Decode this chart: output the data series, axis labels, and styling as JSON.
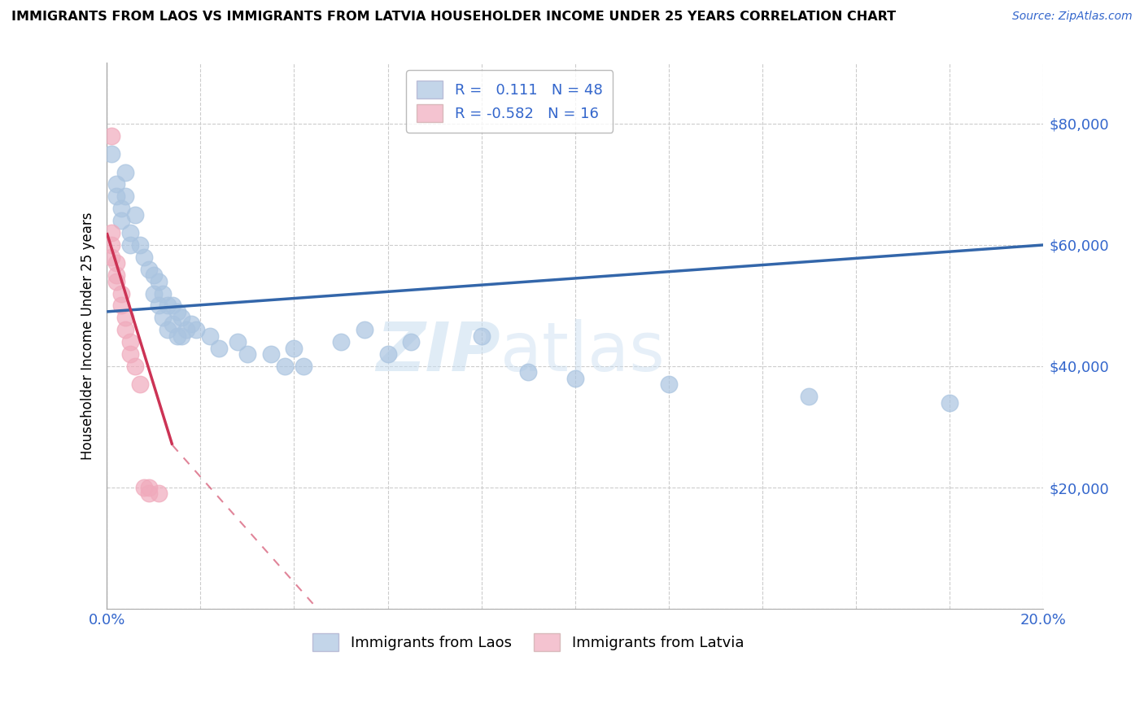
{
  "title": "IMMIGRANTS FROM LAOS VS IMMIGRANTS FROM LATVIA HOUSEHOLDER INCOME UNDER 25 YEARS CORRELATION CHART",
  "source": "Source: ZipAtlas.com",
  "ylabel": "Householder Income Under 25 years",
  "xlim": [
    0.0,
    0.2
  ],
  "ylim": [
    0,
    90000
  ],
  "yticks": [
    0,
    20000,
    40000,
    60000,
    80000
  ],
  "ytick_labels": [
    "",
    "$20,000",
    "$40,000",
    "$60,000",
    "$80,000"
  ],
  "xticks": [
    0.0,
    0.02,
    0.04,
    0.06,
    0.08,
    0.1,
    0.12,
    0.14,
    0.16,
    0.18,
    0.2
  ],
  "xtick_labels": [
    "0.0%",
    "",
    "",
    "",
    "",
    "",
    "",
    "",
    "",
    "",
    "20.0%"
  ],
  "laos_color": "#aac4e0",
  "latvia_color": "#f0aabc",
  "laos_line_color": "#3366aa",
  "latvia_line_color": "#cc3355",
  "laos_R": 0.111,
  "laos_N": 48,
  "latvia_R": -0.582,
  "latvia_N": 16,
  "watermark_zip": "ZIP",
  "watermark_atlas": "atlas",
  "laos_line_x0": 0.0,
  "laos_line_y0": 49000,
  "laos_line_x1": 0.2,
  "laos_line_y1": 60000,
  "latvia_line_x0": 0.0,
  "latvia_line_y0": 62000,
  "latvia_line_x1": 0.014,
  "latvia_line_y1": 27000,
  "latvia_line_dash_x0": 0.014,
  "latvia_line_dash_y0": 27000,
  "latvia_line_dash_x1": 0.045,
  "latvia_line_dash_y1": 0,
  "laos_points": [
    [
      0.001,
      75000
    ],
    [
      0.002,
      70000
    ],
    [
      0.002,
      68000
    ],
    [
      0.003,
      66000
    ],
    [
      0.003,
      64000
    ],
    [
      0.004,
      72000
    ],
    [
      0.004,
      68000
    ],
    [
      0.005,
      62000
    ],
    [
      0.005,
      60000
    ],
    [
      0.006,
      65000
    ],
    [
      0.007,
      60000
    ],
    [
      0.008,
      58000
    ],
    [
      0.009,
      56000
    ],
    [
      0.01,
      55000
    ],
    [
      0.01,
      52000
    ],
    [
      0.011,
      54000
    ],
    [
      0.011,
      50000
    ],
    [
      0.012,
      52000
    ],
    [
      0.012,
      48000
    ],
    [
      0.013,
      50000
    ],
    [
      0.013,
      46000
    ],
    [
      0.014,
      50000
    ],
    [
      0.014,
      47000
    ],
    [
      0.015,
      49000
    ],
    [
      0.015,
      45000
    ],
    [
      0.016,
      48000
    ],
    [
      0.016,
      45000
    ],
    [
      0.017,
      46000
    ],
    [
      0.018,
      47000
    ],
    [
      0.019,
      46000
    ],
    [
      0.022,
      45000
    ],
    [
      0.024,
      43000
    ],
    [
      0.028,
      44000
    ],
    [
      0.03,
      42000
    ],
    [
      0.035,
      42000
    ],
    [
      0.038,
      40000
    ],
    [
      0.04,
      43000
    ],
    [
      0.042,
      40000
    ],
    [
      0.05,
      44000
    ],
    [
      0.055,
      46000
    ],
    [
      0.06,
      42000
    ],
    [
      0.065,
      44000
    ],
    [
      0.08,
      45000
    ],
    [
      0.09,
      39000
    ],
    [
      0.1,
      38000
    ],
    [
      0.12,
      37000
    ],
    [
      0.15,
      35000
    ],
    [
      0.18,
      34000
    ]
  ],
  "latvia_points": [
    [
      0.001,
      62000
    ],
    [
      0.001,
      60000
    ],
    [
      0.001,
      58000
    ],
    [
      0.002,
      57000
    ],
    [
      0.002,
      55000
    ],
    [
      0.002,
      54000
    ],
    [
      0.003,
      52000
    ],
    [
      0.003,
      50000
    ],
    [
      0.004,
      48000
    ],
    [
      0.004,
      46000
    ],
    [
      0.005,
      44000
    ],
    [
      0.005,
      42000
    ],
    [
      0.006,
      40000
    ],
    [
      0.007,
      37000
    ],
    [
      0.008,
      20000
    ],
    [
      0.009,
      19000
    ]
  ],
  "latvia_extra_points": [
    [
      0.001,
      78000
    ],
    [
      0.009,
      20000
    ],
    [
      0.011,
      19000
    ]
  ]
}
